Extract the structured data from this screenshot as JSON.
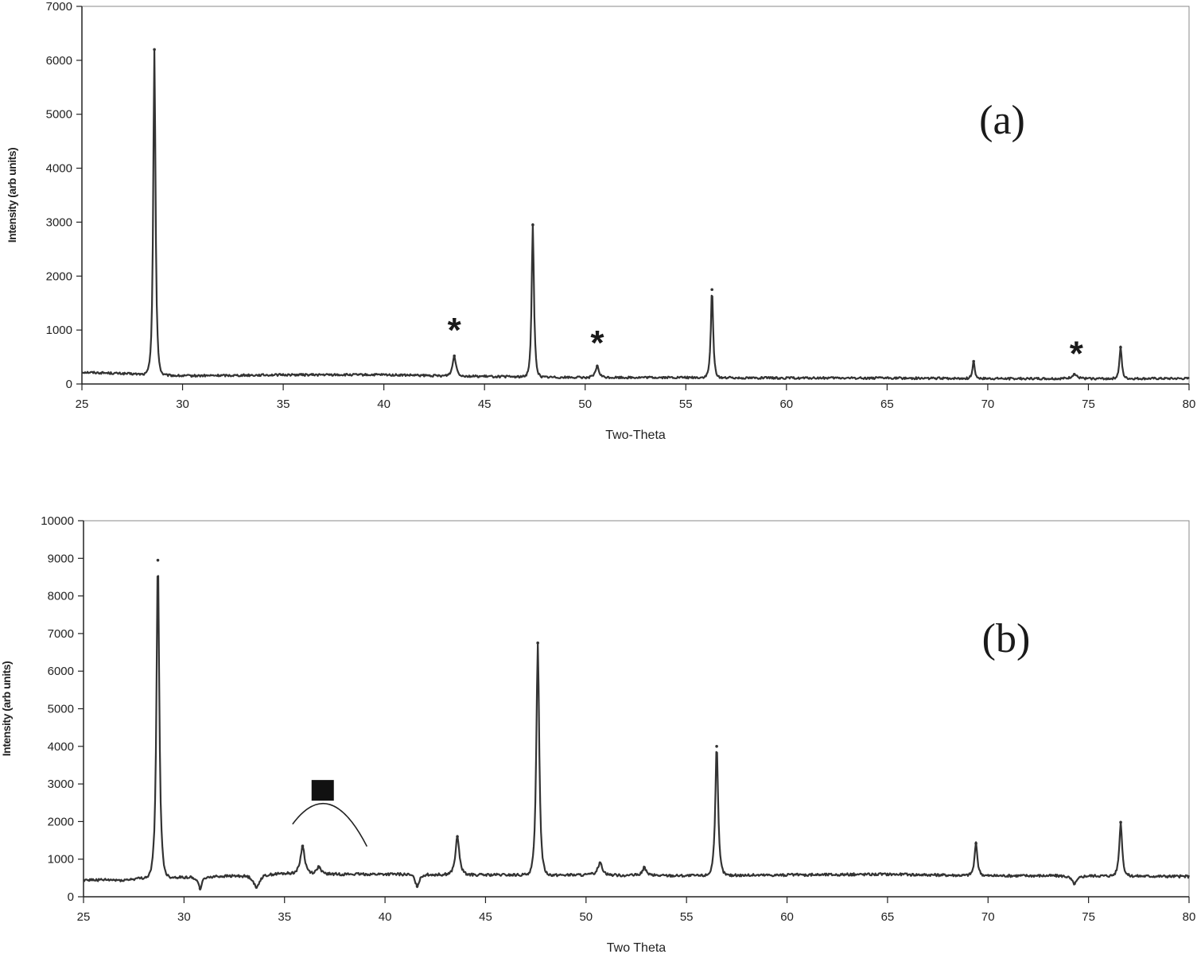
{
  "chart_data": [
    {
      "type": "line",
      "panel_label": "(a)",
      "xlabel": "Two-Theta",
      "ylabel": "Intensity (arb units)",
      "xlim": [
        25,
        80
      ],
      "ylim": [
        0,
        7000
      ],
      "x_ticks": [
        25,
        30,
        35,
        40,
        45,
        50,
        55,
        60,
        65,
        70,
        75,
        80
      ],
      "y_ticks": [
        0,
        1000,
        2000,
        3000,
        4000,
        5000,
        6000,
        7000
      ],
      "grid": false,
      "line_color": "#333333",
      "baseline": [
        [
          25,
          220
        ],
        [
          28,
          180
        ],
        [
          30,
          150
        ],
        [
          35,
          170
        ],
        [
          40,
          170
        ],
        [
          43,
          150
        ],
        [
          45,
          140
        ],
        [
          50,
          120
        ],
        [
          55,
          120
        ],
        [
          60,
          110
        ],
        [
          65,
          110
        ],
        [
          70,
          100
        ],
        [
          75,
          100
        ],
        [
          80,
          100
        ]
      ],
      "peaks": [
        {
          "x": 28.6,
          "y": 6200,
          "width": 0.12
        },
        {
          "x": 43.5,
          "y": 520,
          "width": 0.18
        },
        {
          "x": 47.4,
          "y": 2950,
          "width": 0.12
        },
        {
          "x": 50.6,
          "y": 330,
          "width": 0.18
        },
        {
          "x": 56.3,
          "y": 1750,
          "width": 0.12
        },
        {
          "x": 69.3,
          "y": 420,
          "width": 0.12
        },
        {
          "x": 74.3,
          "y": 180,
          "width": 0.25
        },
        {
          "x": 76.6,
          "y": 680,
          "width": 0.12
        }
      ],
      "annotations": [
        {
          "text": "*",
          "x": 43.5,
          "y": 1020
        },
        {
          "text": "*",
          "x": 50.6,
          "y": 780
        },
        {
          "text": "*",
          "x": 74.4,
          "y": 580
        }
      ]
    },
    {
      "type": "line",
      "panel_label": "(b)",
      "xlabel": "Two Theta",
      "ylabel": "Intensity (arb units)",
      "xlim": [
        25,
        80
      ],
      "ylim": [
        0,
        10000
      ],
      "x_ticks": [
        25,
        30,
        35,
        40,
        45,
        50,
        55,
        60,
        65,
        70,
        75,
        80
      ],
      "y_ticks": [
        0,
        1000,
        2000,
        3000,
        4000,
        5000,
        6000,
        7000,
        8000,
        9000,
        10000
      ],
      "grid": false,
      "line_color": "#333333",
      "baseline": [
        [
          25,
          450
        ],
        [
          27,
          440
        ],
        [
          28,
          500
        ],
        [
          30,
          520
        ],
        [
          33,
          560
        ],
        [
          35,
          620
        ],
        [
          38,
          600
        ],
        [
          40,
          600
        ],
        [
          45,
          580
        ],
        [
          50,
          580
        ],
        [
          55,
          560
        ],
        [
          60,
          580
        ],
        [
          65,
          600
        ],
        [
          70,
          560
        ],
        [
          75,
          560
        ],
        [
          80,
          540
        ]
      ],
      "peaks": [
        {
          "x": 28.7,
          "y": 8950,
          "width": 0.15
        },
        {
          "x": 30.8,
          "y": 220,
          "width": 0.2
        },
        {
          "x": 33.6,
          "y": 250,
          "width": 0.3
        },
        {
          "x": 35.9,
          "y": 1350,
          "width": 0.22
        },
        {
          "x": 36.7,
          "y": 800,
          "width": 0.2
        },
        {
          "x": 41.6,
          "y": 280,
          "width": 0.2
        },
        {
          "x": 43.6,
          "y": 1600,
          "width": 0.2
        },
        {
          "x": 47.6,
          "y": 6750,
          "width": 0.15
        },
        {
          "x": 50.7,
          "y": 900,
          "width": 0.25
        },
        {
          "x": 52.9,
          "y": 780,
          "width": 0.2
        },
        {
          "x": 56.5,
          "y": 4000,
          "width": 0.15
        },
        {
          "x": 69.4,
          "y": 1420,
          "width": 0.15
        },
        {
          "x": 74.3,
          "y": 350,
          "width": 0.3
        },
        {
          "x": 76.6,
          "y": 1980,
          "width": 0.15
        }
      ],
      "annotations": [
        {
          "text": "■",
          "x": 36.9,
          "y": 2830
        }
      ],
      "arc": {
        "x_start": 35.4,
        "x_end": 39.1,
        "y_end": 1550,
        "y_peak": 2200
      }
    }
  ]
}
